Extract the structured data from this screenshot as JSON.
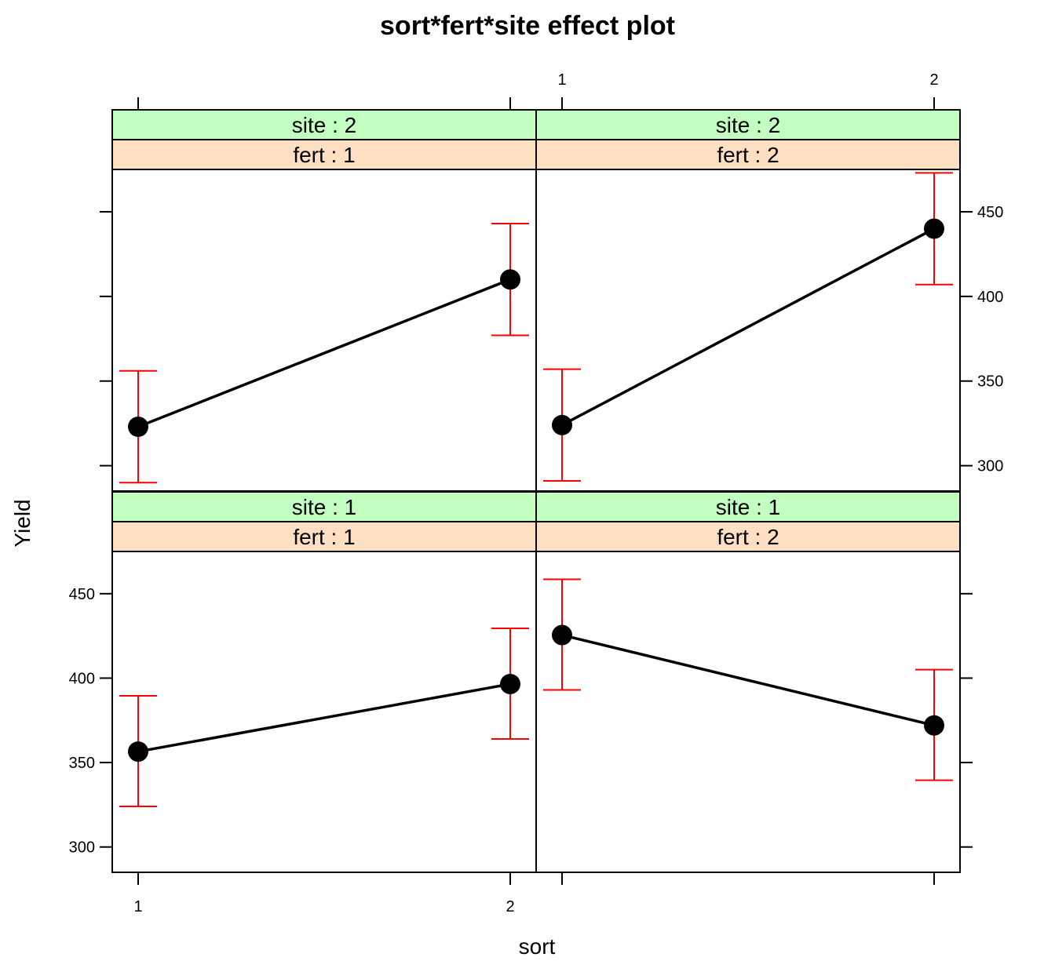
{
  "chart_data": {
    "type": "line",
    "title": "sort*fert*site effect plot",
    "xlabel": "sort",
    "ylabel": "Yield",
    "x_categories": [
      "1",
      "2"
    ],
    "ylim": [
      285,
      475
    ],
    "y_ticks": [
      300,
      350,
      400,
      450
    ],
    "grid": false,
    "colors": {
      "line": "#000000",
      "points": "#000000",
      "error_bars": "#ff0000",
      "strip_site": "#c2ffc0",
      "strip_fert": "#ffdfc2"
    },
    "panels": [
      {
        "strip_top": "site : 2",
        "strip_bottom": "fert : 1",
        "x": [
          "1",
          "2"
        ],
        "y": [
          323,
          410
        ],
        "lower": [
          290,
          377
        ],
        "upper": [
          356,
          443
        ]
      },
      {
        "strip_top": "site : 2",
        "strip_bottom": "fert : 2",
        "x": [
          "1",
          "2"
        ],
        "y": [
          324,
          440
        ],
        "lower": [
          291,
          407
        ],
        "upper": [
          357,
          473
        ]
      },
      {
        "strip_top": "site : 1",
        "strip_bottom": "fert : 1",
        "x": [
          "1",
          "2"
        ],
        "y": [
          356.5,
          396.5
        ],
        "lower": [
          324,
          364
        ],
        "upper": [
          389.5,
          429.5
        ]
      },
      {
        "strip_top": "site : 1",
        "strip_bottom": "fert : 2",
        "x": [
          "1",
          "2"
        ],
        "y": [
          425.5,
          372
        ],
        "lower": [
          393,
          339.5
        ],
        "upper": [
          458.5,
          405
        ]
      }
    ]
  }
}
